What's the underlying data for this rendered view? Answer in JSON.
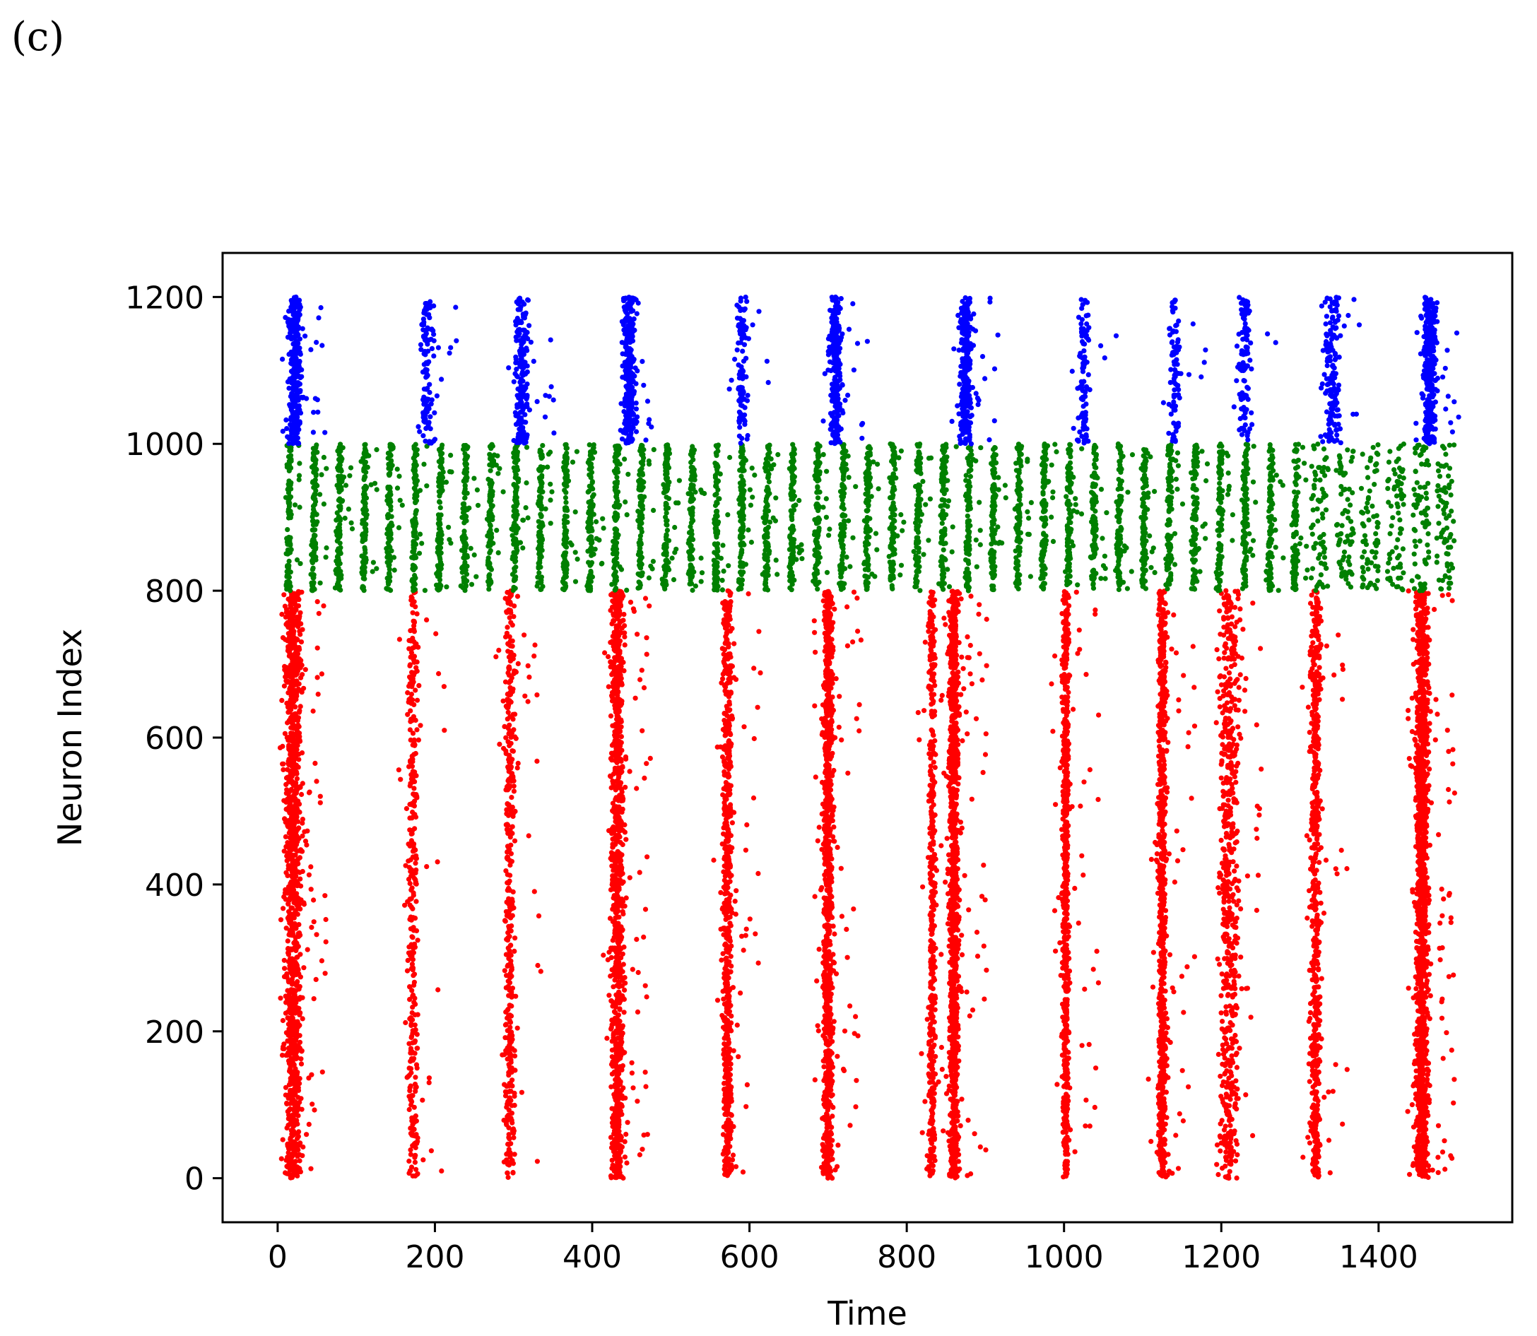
{
  "figure": {
    "panel_label": "(c)"
  },
  "chart_data": {
    "type": "scatter",
    "title": "",
    "xlabel": "Time",
    "ylabel": "Neuron Index",
    "xlim": [
      -70,
      1570
    ],
    "ylim": [
      -60,
      1260
    ],
    "xticks": [
      0,
      200,
      400,
      600,
      800,
      1000,
      1200,
      1400
    ],
    "yticks": [
      0,
      200,
      400,
      600,
      800,
      1000,
      1200
    ],
    "grid": false,
    "legend": "none",
    "series": [
      {
        "color": "#ff0000",
        "neuron_range": [
          0,
          800
        ],
        "burst_times": [
          20,
          172,
          295,
          432,
          572,
          700,
          832,
          860,
          1002,
          1125,
          1210,
          1320,
          1455
        ],
        "burst_widths": [
          10,
          6,
          6,
          8,
          6,
          6,
          4,
          6,
          4,
          5,
          12,
          6,
          8
        ],
        "burst_density": [
          0.9,
          0.25,
          0.3,
          0.7,
          0.5,
          0.7,
          0.35,
          0.8,
          0.5,
          0.55,
          0.45,
          0.45,
          0.95
        ]
      },
      {
        "color": "#008000",
        "neuron_range": [
          800,
          1000
        ],
        "burst_period": 32,
        "time_range": [
          13,
          1500
        ]
      },
      {
        "color": "#0000ff",
        "neuron_range": [
          1000,
          1200
        ],
        "burst_times": [
          22,
          190,
          310,
          447,
          590,
          710,
          875,
          1025,
          1140,
          1230,
          1340,
          1465
        ],
        "burst_widths": [
          8,
          8,
          9,
          8,
          7,
          7,
          7,
          7,
          6,
          8,
          10,
          8
        ],
        "burst_density": [
          0.9,
          0.35,
          0.55,
          0.85,
          0.3,
          0.8,
          0.85,
          0.3,
          0.25,
          0.3,
          0.5,
          0.95
        ]
      }
    ]
  }
}
